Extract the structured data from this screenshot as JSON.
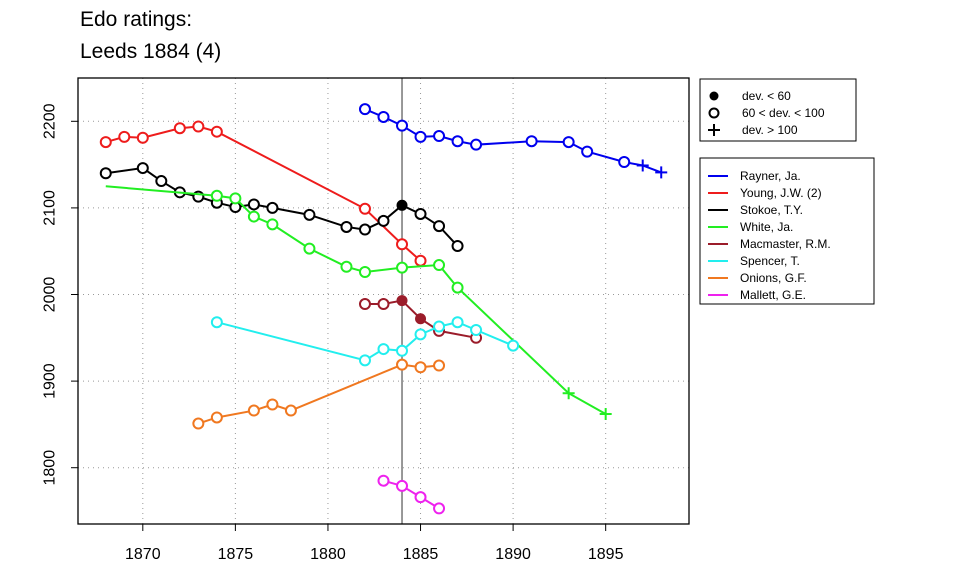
{
  "title_line1": "Edo ratings:",
  "title_line2": "Leeds 1884 (4)",
  "chart_data": {
    "type": "line",
    "title": "Edo ratings: Leeds 1884 (4)",
    "xlabel": "",
    "ylabel": "",
    "xlim": [
      1866.5,
      1899.5
    ],
    "ylim": [
      1735,
      2250
    ],
    "xticks": [
      1870,
      1875,
      1880,
      1885,
      1890,
      1895
    ],
    "yticks": [
      1800,
      1900,
      2000,
      2100,
      2200
    ],
    "x_tick_labels": [
      "1870",
      "1875",
      "1880",
      "1885",
      "1890",
      "1895"
    ],
    "y_tick_labels": [
      "1800",
      "1900",
      "2000",
      "2100",
      "2200"
    ],
    "grid": true,
    "reference_line_x": 1884,
    "marker_legend": [
      {
        "symbol": "filled",
        "label": "dev. < 60"
      },
      {
        "symbol": "open",
        "label": "60 < dev. < 100"
      },
      {
        "symbol": "plus",
        "label": "dev. > 100"
      }
    ],
    "series": [
      {
        "name": "Rayner, Ja.",
        "color": "#0000ee",
        "x": [
          1882,
          1883,
          1884,
          1885,
          1886,
          1887,
          1888,
          1891,
          1893,
          1894,
          1896,
          1897,
          1898
        ],
        "y": [
          2214,
          2205,
          2195,
          2182,
          2183,
          2177,
          2173,
          2177,
          2176,
          2165,
          2153,
          2149,
          2141
        ],
        "markers": [
          "o",
          "o",
          "o",
          "o",
          "o",
          "o",
          "o",
          "o",
          "o",
          "o",
          "o",
          "+",
          "+"
        ]
      },
      {
        "name": "Young, J.W. (2)",
        "color": "#ee1c1c",
        "x": [
          1868,
          1869,
          1870,
          1872,
          1873,
          1874,
          1882,
          1884,
          1885
        ],
        "y": [
          2176,
          2182,
          2181,
          2192,
          2194,
          2188,
          2099,
          2058,
          2039
        ],
        "markers": [
          "o",
          "o",
          "o",
          "o",
          "o",
          "o",
          "o",
          "o",
          "o"
        ]
      },
      {
        "name": "Stokoe, T.Y.",
        "color": "#000000",
        "x": [
          1868,
          1870,
          1871,
          1872,
          1873,
          1874,
          1875,
          1876,
          1877,
          1879,
          1881,
          1882,
          1883,
          1884,
          1885,
          1886,
          1887
        ],
        "y": [
          2140,
          2146,
          2131,
          2118,
          2113,
          2106,
          2101,
          2104,
          2100,
          2092,
          2078,
          2075,
          2085,
          2103,
          2093,
          2079,
          2056
        ],
        "markers": [
          "o",
          "o",
          "o",
          "o",
          "o",
          "o",
          "o",
          "o",
          "o",
          "o",
          "o",
          "o",
          "o",
          "f",
          "o",
          "o",
          "o"
        ]
      },
      {
        "name": "White, Ja.",
        "color": "#22ee22",
        "x": [
          1868,
          1874,
          1875,
          1876,
          1877,
          1879,
          1881,
          1882,
          1884,
          1886,
          1887,
          1893,
          1895
        ],
        "y": [
          2125,
          2114,
          2111,
          2090,
          2081,
          2053,
          2032,
          2026,
          2031,
          2034,
          2008,
          1886,
          1862
        ],
        "markers": [
          "n",
          "o",
          "o",
          "o",
          "o",
          "o",
          "o",
          "o",
          "o",
          "o",
          "o",
          "+",
          "+"
        ]
      },
      {
        "name": "Macmaster, R.M.",
        "color": "#9b1c2a",
        "x": [
          1882,
          1883,
          1884,
          1885,
          1886,
          1888
        ],
        "y": [
          1989,
          1989,
          1993,
          1972,
          1958,
          1950
        ],
        "markers": [
          "o",
          "o",
          "f",
          "f",
          "o",
          "o"
        ]
      },
      {
        "name": "Spencer, T.",
        "color": "#22eeee",
        "x": [
          1874,
          1882,
          1883,
          1884,
          1885,
          1886,
          1887,
          1888,
          1890
        ],
        "y": [
          1968,
          1924,
          1937,
          1935,
          1954,
          1963,
          1968,
          1959,
          1941
        ],
        "markers": [
          "o",
          "o",
          "o",
          "o",
          "o",
          "o",
          "o",
          "o",
          "o"
        ]
      },
      {
        "name": "Onions, G.F.",
        "color": "#f07820",
        "x": [
          1873,
          1874,
          1876,
          1877,
          1878,
          1884,
          1885,
          1886
        ],
        "y": [
          1851,
          1858,
          1866,
          1873,
          1866,
          1919,
          1916,
          1918
        ],
        "markers": [
          "o",
          "o",
          "o",
          "o",
          "o",
          "o",
          "o",
          "o"
        ]
      },
      {
        "name": "Mallett, G.E.",
        "color": "#ee22ee",
        "x": [
          1883,
          1884,
          1885,
          1886
        ],
        "y": [
          1785,
          1779,
          1766,
          1753
        ],
        "markers": [
          "o",
          "o",
          "o",
          "o"
        ]
      }
    ]
  }
}
